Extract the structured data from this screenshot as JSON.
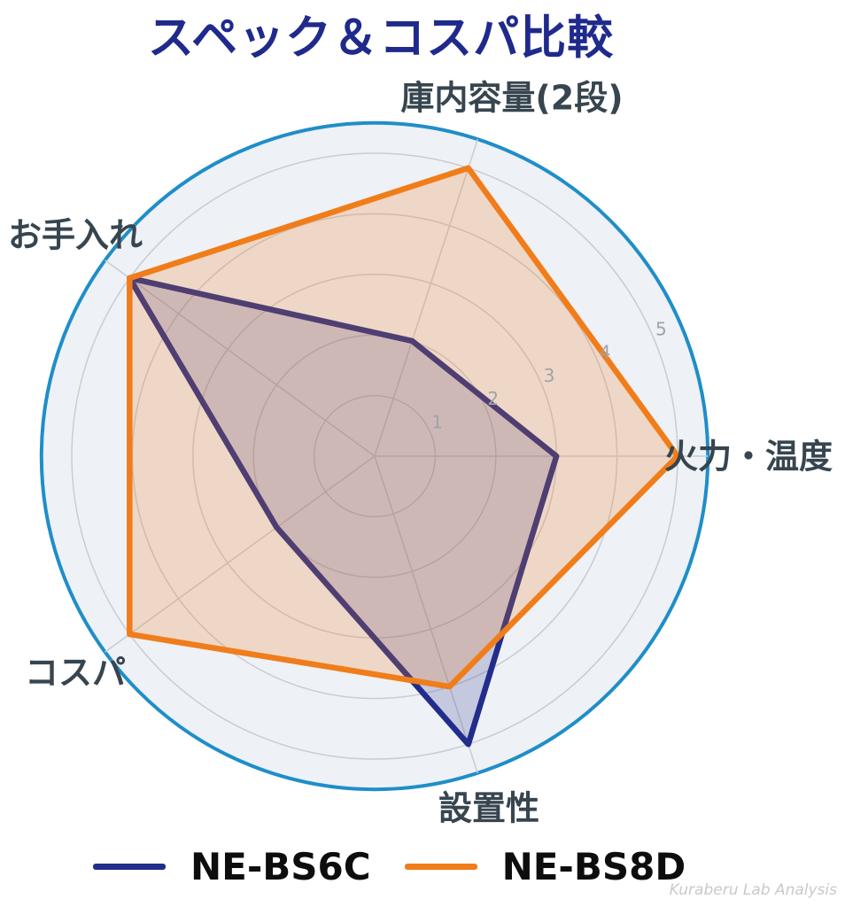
{
  "title": {
    "text": "スペック＆コスパ比較",
    "color": "#1f2a8c"
  },
  "watermark": "Kuraberu Lab Analysis",
  "legend": {
    "items": [
      {
        "label": "NE-BS6C",
        "color": "#222d8b"
      },
      {
        "label": "NE-BS8D",
        "color": "#f07d1a"
      }
    ]
  },
  "colors": {
    "outer_ring": "#1f8ec9",
    "plot_background": "#eef1f6",
    "gridline": "#cbccd3",
    "axis_label": "#37454f",
    "tick_label": "#a0a3aa"
  },
  "chart_data": {
    "type": "radar",
    "categories": [
      "火力・温度",
      "庫内容量(2段)",
      "お手入れ",
      "コスパ",
      "設置性"
    ],
    "angles_deg": [
      0,
      72,
      144,
      216,
      288
    ],
    "series": [
      {
        "name": "NE-BS6C",
        "color": "#222d8b",
        "fill": "rgba(34,45,139,0.20)",
        "values": [
          3,
          2,
          5,
          2,
          5
        ]
      },
      {
        "name": "NE-BS8D",
        "color": "#f07d1a",
        "fill": "rgba(240,125,26,0.22)",
        "values": [
          5,
          5,
          5,
          5,
          4
        ]
      }
    ],
    "radial_ticks": [
      1,
      2,
      3,
      4,
      5
    ],
    "rmax": 5.5,
    "tick_label_angle_deg": 22.5,
    "title": "スペック＆コスパ比較",
    "grid": true,
    "legend_position": "bottom"
  }
}
